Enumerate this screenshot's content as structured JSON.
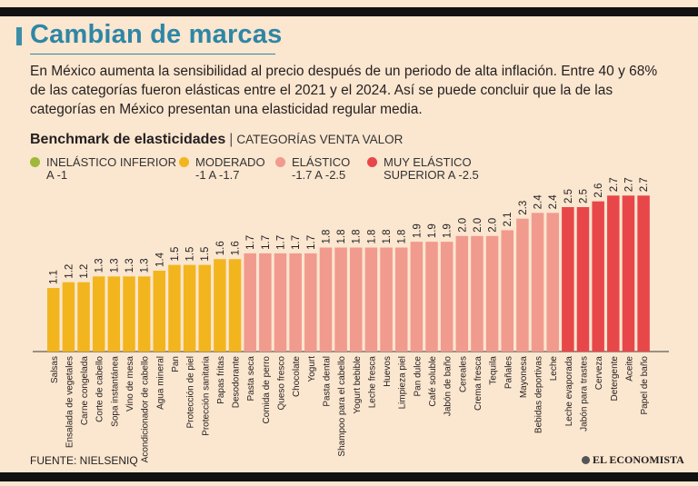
{
  "title": "Cambian de marcas",
  "subtitle": "En México aumenta la sensibilidad al precio después de un periodo de alta inflación. Entre 40 y 68% de las categorías fueron elásticas entre el 2021 y el 2024. Así se puede concluir que la de las categorías en México presentan una elasticidad regular media.",
  "benchmark": {
    "title": "Benchmark de elasticidades",
    "separator": "|",
    "subtitle": "CATEGORÍAS VENTA VALOR"
  },
  "legend": [
    {
      "line1": "INELÁSTICO INFERIOR",
      "line2": "A -1",
      "color": "#9fb83a"
    },
    {
      "line1": "MODERADO",
      "line2": "-1 A -1.7",
      "color": "#f3b51e"
    },
    {
      "line1": "ELÁSTICO",
      "line2": "-1.7 A -2.5",
      "color": "#f19a8e"
    },
    {
      "line1": "MUY ELÁSTICO",
      "line2": "SUPERIOR A -2.5",
      "color": "#e8474a"
    }
  ],
  "chart_data": {
    "type": "bar",
    "categories": [
      "Salsas",
      "Ensalada de vegetales",
      "Carne congelada",
      "Corte de cabello",
      "Sopa instantánea",
      "Vino de mesa",
      "Acondicionador de cabello",
      "Agua mineral",
      "Pan",
      "Protección de piel",
      "Protección sanitaria",
      "Papas fritas",
      "Desodorante",
      "Pasta seca",
      "Comida de perro",
      "Queso fresco",
      "Chocolate",
      "Yogurt",
      "Pasta dental",
      "Shampoo para el cabello",
      "Yogurt bebible",
      "Leche fresca",
      "Huevos",
      "Limpieza piel",
      "Pan dulce",
      "Café soluble",
      "Jabón de baño",
      "Cereales",
      "Crema fresca",
      "Tequila",
      "Pañales",
      "Mayonesa",
      "Bebidas deportivas",
      "Leche",
      "Leche evaporada",
      "Jabón para trastes",
      "Cerveza",
      "Detergente",
      "Aceite",
      "Papel de baño"
    ],
    "values": [
      1.1,
      1.2,
      1.2,
      1.3,
      1.3,
      1.3,
      1.3,
      1.4,
      1.5,
      1.5,
      1.5,
      1.6,
      1.6,
      1.7,
      1.7,
      1.7,
      1.7,
      1.7,
      1.8,
      1.8,
      1.8,
      1.8,
      1.8,
      1.8,
      1.9,
      1.9,
      1.9,
      2.0,
      2.0,
      2.0,
      2.1,
      2.3,
      2.4,
      2.4,
      2.5,
      2.5,
      2.6,
      2.7,
      2.7,
      2.7
    ],
    "value_labels": [
      "1.1",
      "1.2",
      "1.2",
      "1.3",
      "1.3",
      "1.3",
      "1.3",
      "1.4",
      "1.5",
      "1.5",
      "1.5",
      "1.6",
      "1.6",
      "1.7",
      "1.7",
      "1.7",
      "1.7",
      "1.7",
      "1.8",
      "1.8",
      "1.8",
      "1.8",
      "1.8",
      "1.8",
      "1.9",
      "1.9",
      "1.9",
      "2.0",
      "2.0",
      "2.0",
      "2.1",
      "2.3",
      "2.4",
      "2.4",
      "2.5",
      "2.5",
      "2.6",
      "2.7",
      "2.7",
      "2.7"
    ],
    "group": [
      "moderado",
      "moderado",
      "moderado",
      "moderado",
      "moderado",
      "moderado",
      "moderado",
      "moderado",
      "moderado",
      "moderado",
      "moderado",
      "moderado",
      "moderado",
      "elastico",
      "elastico",
      "elastico",
      "elastico",
      "elastico",
      "elastico",
      "elastico",
      "elastico",
      "elastico",
      "elastico",
      "elastico",
      "elastico",
      "elastico",
      "elastico",
      "elastico",
      "elastico",
      "elastico",
      "elastico",
      "elastico",
      "elastico",
      "elastico",
      "muy_elastico",
      "muy_elastico",
      "muy_elastico",
      "muy_elastico",
      "muy_elastico",
      "muy_elastico"
    ],
    "group_colors": {
      "moderado": "#f3b51e",
      "elastico": "#f19a8e",
      "muy_elastico": "#e8474a"
    },
    "ylim": [
      0,
      3.2
    ],
    "grid": false
  },
  "source": "FUENTE: NIELSENIQ",
  "brand": "EL ECONOMISTA"
}
